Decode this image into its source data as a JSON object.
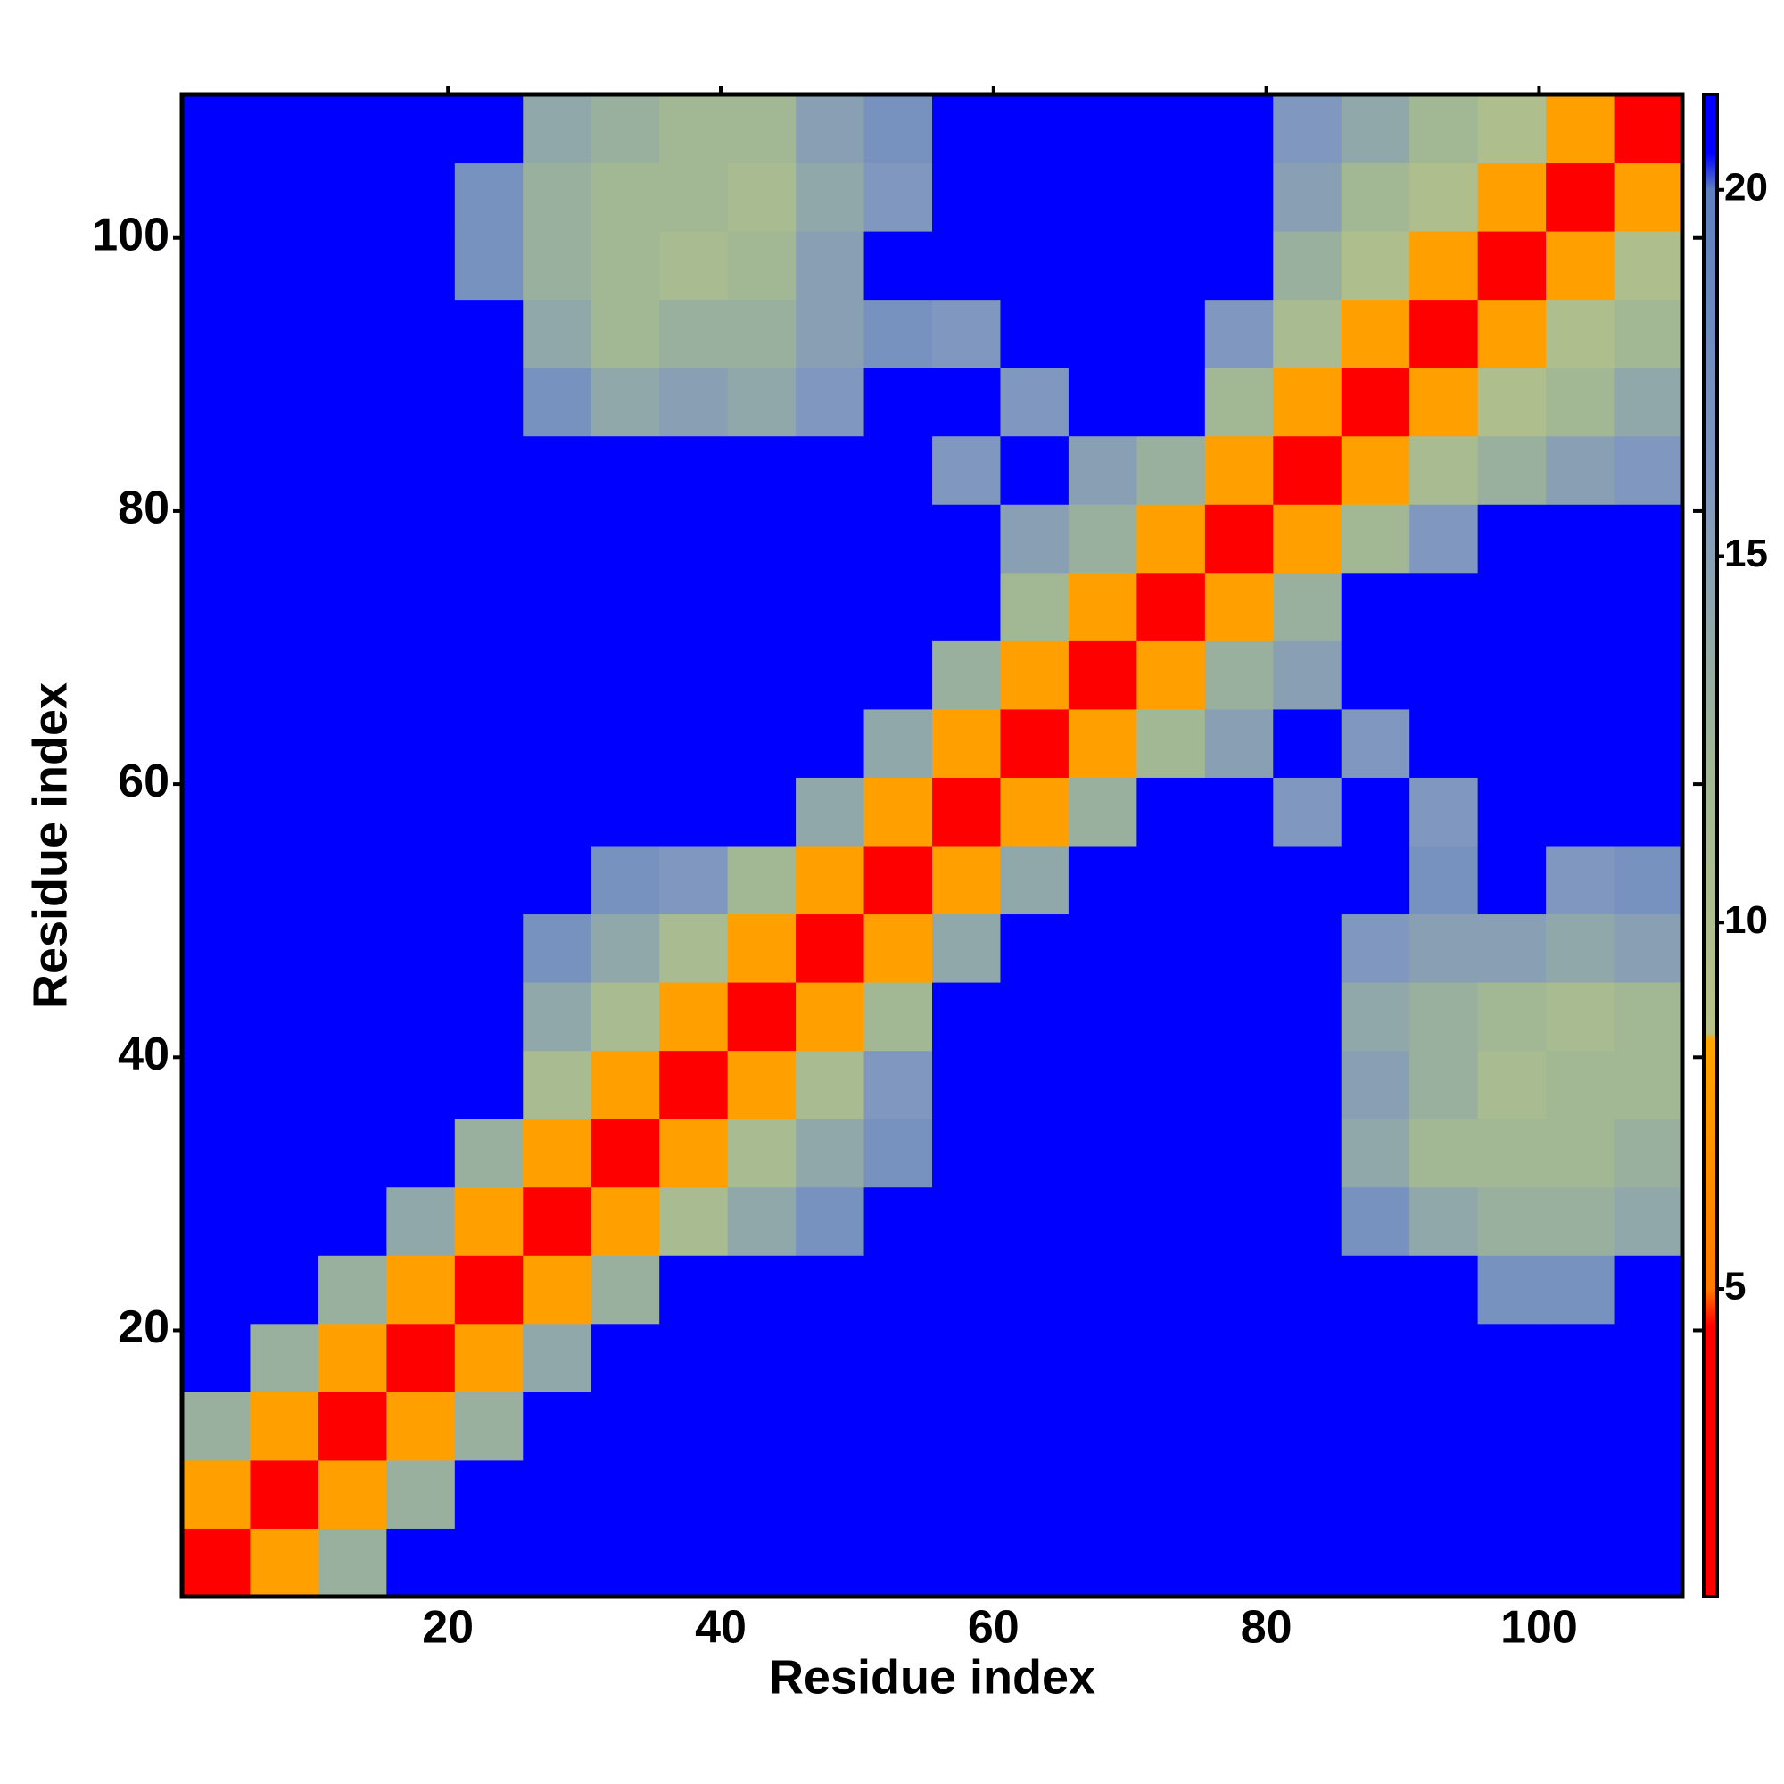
{
  "chart_data": {
    "type": "heatmap",
    "xlabel": "Residue index",
    "ylabel": "Residue index",
    "x": [
      3,
      8,
      13,
      18,
      23,
      28,
      33,
      38,
      43,
      48,
      53,
      58,
      63,
      68,
      73,
      78,
      83,
      88,
      93,
      98,
      103,
      108
    ],
    "y": [
      3,
      8,
      13,
      18,
      23,
      28,
      33,
      38,
      43,
      48,
      53,
      58,
      63,
      68,
      73,
      78,
      83,
      88,
      93,
      98,
      103,
      108
    ],
    "cell_size": 5,
    "xlim": [
      0.5,
      110.5
    ],
    "ylim": [
      0.5,
      110.5
    ],
    "xticks": [
      20,
      40,
      60,
      80,
      100
    ],
    "yticks": [
      20,
      40,
      60,
      80,
      100
    ],
    "zlim": [
      0.8,
      21.3
    ],
    "zticks": [
      5,
      10,
      15,
      20
    ],
    "colorscale": [
      [
        0.8,
        "#ff0000"
      ],
      [
        4.5,
        "#ff0000"
      ],
      [
        5,
        "#ff7a00"
      ],
      [
        8.4,
        "#ffa500"
      ],
      [
        8.5,
        "#b8c288"
      ],
      [
        12,
        "#a2b894"
      ],
      [
        16,
        "#8098bf"
      ],
      [
        20,
        "#5f80bd"
      ],
      [
        20.5,
        "#0000ff"
      ],
      [
        21.3,
        "#0000ff"
      ]
    ],
    "z": [
      [
        3,
        8,
        13,
        21,
        21,
        21,
        21,
        21,
        21,
        21,
        21,
        21,
        21,
        21,
        21,
        21,
        21,
        21,
        21,
        21,
        21,
        21
      ],
      [
        8,
        3,
        8,
        13,
        21,
        21,
        21,
        21,
        21,
        21,
        21,
        21,
        21,
        21,
        21,
        21,
        21,
        21,
        21,
        21,
        21,
        21
      ],
      [
        13,
        8,
        3,
        8,
        13,
        21,
        21,
        21,
        21,
        21,
        21,
        21,
        21,
        21,
        21,
        21,
        21,
        21,
        21,
        21,
        21,
        21
      ],
      [
        21,
        13,
        8,
        3,
        8,
        14,
        21,
        21,
        21,
        21,
        21,
        21,
        21,
        21,
        21,
        21,
        21,
        21,
        21,
        21,
        21,
        21
      ],
      [
        21,
        21,
        13,
        8,
        3,
        8,
        13,
        21,
        21,
        21,
        21,
        21,
        21,
        21,
        21,
        21,
        21,
        21,
        21,
        17,
        17,
        21
      ],
      [
        21,
        21,
        21,
        14,
        8,
        3,
        8,
        11,
        14,
        17,
        21,
        21,
        21,
        21,
        21,
        21,
        21,
        17,
        14,
        13,
        13,
        14
      ],
      [
        21,
        21,
        21,
        21,
        13,
        8,
        3,
        8,
        11,
        14,
        17,
        21,
        21,
        21,
        21,
        21,
        21,
        14,
        12,
        12,
        12,
        13
      ],
      [
        21,
        21,
        21,
        21,
        21,
        11,
        8,
        3,
        8,
        11,
        16,
        21,
        21,
        21,
        21,
        21,
        21,
        15,
        13,
        11,
        12,
        12
      ],
      [
        21,
        21,
        21,
        21,
        21,
        14,
        11,
        8,
        3,
        8,
        12,
        21,
        21,
        21,
        21,
        21,
        21,
        14,
        13,
        12,
        11,
        12
      ],
      [
        21,
        21,
        21,
        21,
        21,
        17,
        14,
        11,
        8,
        3,
        8,
        14,
        21,
        21,
        21,
        21,
        21,
        16,
        15,
        15,
        14,
        15
      ],
      [
        21,
        21,
        21,
        21,
        21,
        21,
        17,
        16,
        12,
        8,
        3,
        8,
        14,
        21,
        21,
        21,
        21,
        21,
        17,
        21,
        16,
        17
      ],
      [
        21,
        21,
        21,
        21,
        21,
        21,
        21,
        21,
        21,
        14,
        8,
        3,
        8,
        13,
        21,
        21,
        16,
        21,
        16,
        21,
        21,
        21
      ],
      [
        21,
        21,
        21,
        21,
        21,
        21,
        21,
        21,
        21,
        21,
        14,
        8,
        3,
        8,
        12,
        15,
        21,
        16,
        21,
        21,
        21,
        21
      ],
      [
        21,
        21,
        21,
        21,
        21,
        21,
        21,
        21,
        21,
        21,
        21,
        13,
        8,
        3,
        8,
        13,
        15,
        21,
        21,
        21,
        21,
        21
      ],
      [
        21,
        21,
        21,
        21,
        21,
        21,
        21,
        21,
        21,
        21,
        21,
        21,
        12,
        8,
        3,
        8,
        13,
        21,
        21,
        21,
        21,
        21
      ],
      [
        21,
        21,
        21,
        21,
        21,
        21,
        21,
        21,
        21,
        21,
        21,
        21,
        15,
        13,
        8,
        3,
        8,
        12,
        16,
        21,
        21,
        21
      ],
      [
        21,
        21,
        21,
        21,
        21,
        21,
        21,
        21,
        21,
        21,
        21,
        16,
        21,
        15,
        13,
        8,
        3,
        8,
        11,
        13,
        15,
        16
      ],
      [
        21,
        21,
        21,
        21,
        21,
        17,
        14,
        15,
        14,
        16,
        21,
        21,
        16,
        21,
        21,
        12,
        8,
        3,
        8,
        10,
        12,
        14
      ],
      [
        21,
        21,
        21,
        21,
        21,
        14,
        12,
        13,
        13,
        15,
        17,
        16,
        21,
        21,
        21,
        16,
        11,
        8,
        3,
        8,
        10,
        12
      ],
      [
        21,
        21,
        21,
        21,
        17,
        13,
        12,
        11,
        12,
        15,
        21,
        21,
        21,
        21,
        21,
        21,
        13,
        10,
        8,
        3,
        8,
        10
      ],
      [
        21,
        21,
        21,
        21,
        17,
        13,
        12,
        12,
        11,
        14,
        16,
        21,
        21,
        21,
        21,
        21,
        15,
        12,
        10,
        8,
        3,
        8
      ],
      [
        21,
        21,
        21,
        21,
        21,
        14,
        13,
        12,
        12,
        15,
        17,
        21,
        21,
        21,
        21,
        21,
        16,
        14,
        12,
        10,
        8,
        3
      ]
    ]
  }
}
